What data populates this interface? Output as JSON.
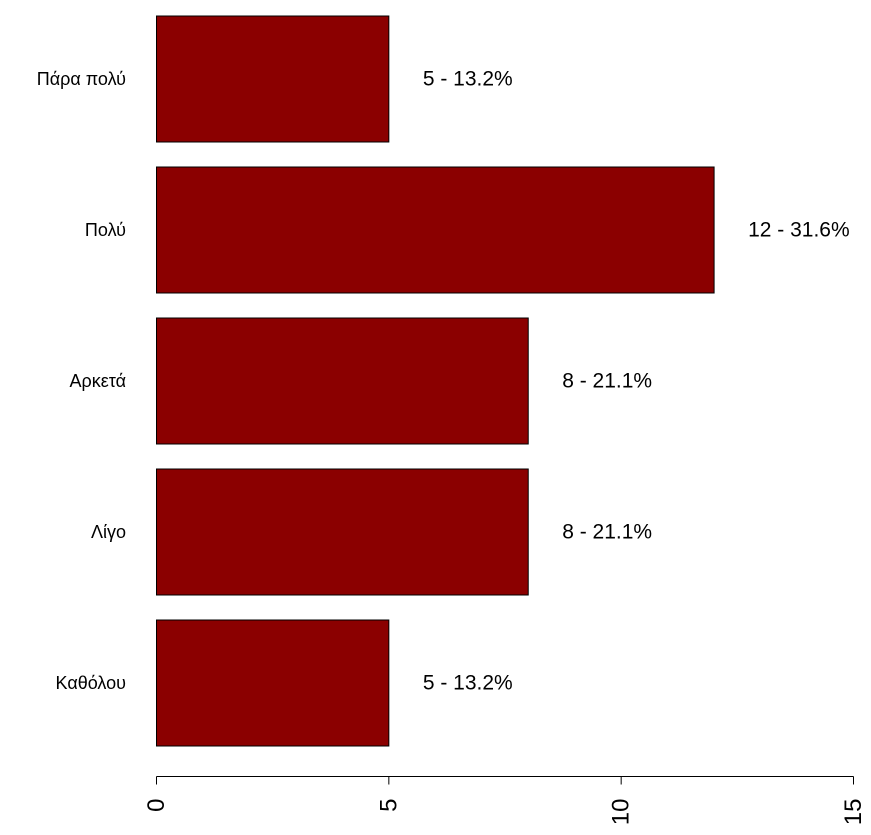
{
  "chart_data": {
    "type": "bar",
    "orientation": "horizontal",
    "categories": [
      "Καθόλου",
      "Λίγο",
      "Αρκετά",
      "Πολύ",
      "Πάρα πολύ"
    ],
    "values": [
      5,
      8,
      8,
      12,
      5
    ],
    "data_labels": [
      "5 - 13.2%",
      "8 - 21.1%",
      "8 - 21.1%",
      "12 - 31.6%",
      "5 - 13.2%"
    ],
    "xlim": [
      0,
      15
    ],
    "x_ticks": [
      0,
      5,
      10,
      15
    ],
    "x_tick_labels": [
      "0",
      "5",
      "10",
      "15"
    ],
    "title": "",
    "xlabel": "",
    "ylabel": "",
    "grid": false,
    "bar_color": "#8b0000",
    "bar_edge_color": "#000000"
  }
}
